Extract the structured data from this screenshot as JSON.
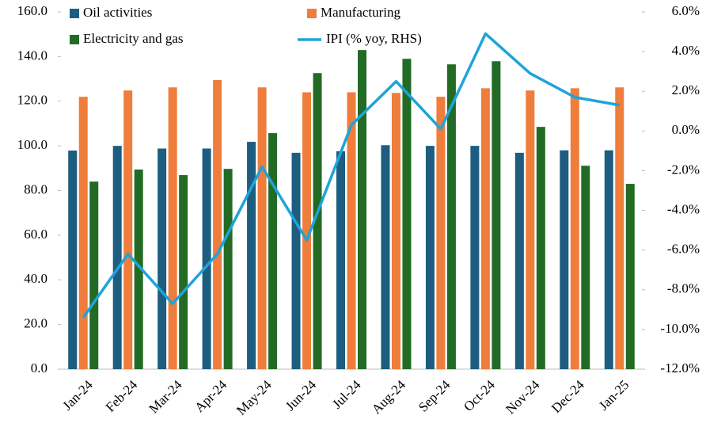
{
  "chart_data": {
    "type": "bar_line",
    "categories": [
      "Jan-24",
      "Feb-24",
      "Mar-24",
      "Apr-24",
      "May-24",
      "Jun-24",
      "Jul-24",
      "Aug-24",
      "Sep-24",
      "Oct-24",
      "Nov-24",
      "Dec-24",
      "Jan-25"
    ],
    "series": [
      {
        "name": "Oil activities",
        "color": "#1c5d80",
        "type": "bar",
        "values": [
          97.9,
          100,
          98.8,
          98.8,
          101.8,
          96.9,
          97.6,
          100.3,
          100,
          100,
          96.9,
          98,
          98
        ]
      },
      {
        "name": "Manufacturing",
        "color": "#ef7d3c",
        "type": "bar",
        "values": [
          122,
          124.8,
          126.2,
          129.5,
          126.2,
          124,
          124,
          123.7,
          122,
          125.8,
          124.8,
          125.8,
          126.2
        ]
      },
      {
        "name": "Electricity and gas",
        "color": "#226b25",
        "type": "bar",
        "values": [
          84,
          89.4,
          86.9,
          89.7,
          105.7,
          132.6,
          142.9,
          139,
          136.5,
          137.9,
          108.5,
          91.1,
          83
        ]
      },
      {
        "name": "IPI (% yoy, RHS)",
        "color": "#1ea4d9",
        "type": "line",
        "axis": "y2",
        "values": [
          -9.4,
          -6.2,
          -8.7,
          -6.2,
          -1.8,
          -5.5,
          0.3,
          2.5,
          0.1,
          4.9,
          2.9,
          1.7,
          1.3
        ]
      }
    ],
    "ylim": [
      0,
      160
    ],
    "yticks": [
      {
        "value": 0,
        "label": "0.0"
      },
      {
        "value": 20,
        "label": "20.0"
      },
      {
        "value": 40,
        "label": "40.0"
      },
      {
        "value": 60,
        "label": "60.0"
      },
      {
        "value": 80,
        "label": "80.0"
      },
      {
        "value": 100,
        "label": "100.0"
      },
      {
        "value": 120,
        "label": "120.0"
      },
      {
        "value": 140,
        "label": "140.0"
      },
      {
        "value": 160,
        "label": "160.0"
      }
    ],
    "y2lim": [
      -12,
      6
    ],
    "y2ticks": [
      {
        "value": -12,
        "label": "-12.0%"
      },
      {
        "value": -10,
        "label": "-10.0%"
      },
      {
        "value": -8,
        "label": "-8.0%"
      },
      {
        "value": -6,
        "label": "-6.0%"
      },
      {
        "value": -4,
        "label": "-4.0%"
      },
      {
        "value": -2,
        "label": "-2.0%"
      },
      {
        "value": 0,
        "label": "0.0%"
      },
      {
        "value": 2,
        "label": "2.0%"
      },
      {
        "value": 4,
        "label": "4.0%"
      },
      {
        "value": 6,
        "label": "6.0%"
      }
    ],
    "grid": false,
    "legend": "top"
  }
}
